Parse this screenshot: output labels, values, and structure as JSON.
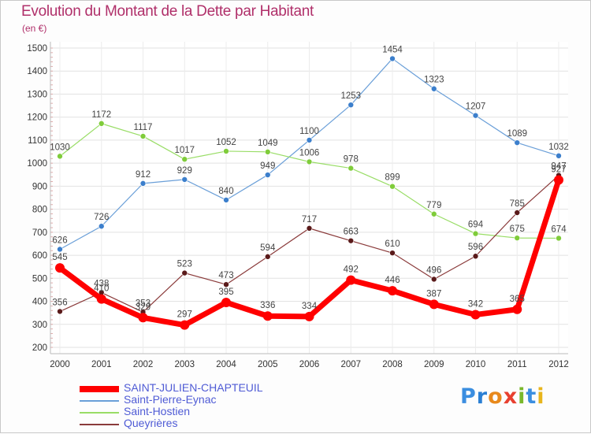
{
  "header": {
    "title": "Evolution du Montant de la Dette par Habitant",
    "unit": "(en €)"
  },
  "logo": {
    "text": "Proxiti",
    "letters": [
      "P",
      "r",
      "o",
      "x",
      "i",
      "t",
      "i"
    ],
    "colors": [
      "#3b8ee0",
      "#2a7fd4",
      "#e8891c",
      "#e84030",
      "#7ab82c",
      "#3b8ee0",
      "#e8b51c"
    ]
  },
  "colors": {
    "SAINT-JULIEN-CHAPTEUIL": "#ff0000",
    "Saint-Pierre-Eynac": "#6a9fd8",
    "Saint-Hostien": "#99dd66",
    "Queyrières": "#7a2a2a"
  },
  "chart_data": {
    "type": "line",
    "title": "Evolution du Montant de la Dette par Habitant",
    "ylabel": "(en €)",
    "xlabel": "",
    "x": [
      "2000",
      "2001",
      "2002",
      "2003",
      "2004",
      "2005",
      "2006",
      "2007",
      "2008",
      "2009",
      "2010",
      "2011",
      "2012"
    ],
    "ylim": [
      200,
      1500
    ],
    "yticks": [
      200,
      300,
      400,
      500,
      600,
      700,
      800,
      900,
      1000,
      1100,
      1200,
      1300,
      1400,
      1500
    ],
    "grid": true,
    "legend": "bottom-left",
    "series": [
      {
        "name": "SAINT-JULIEN-CHAPTEUIL",
        "values": [
          545,
          410,
          329,
          297,
          395,
          336,
          334,
          492,
          446,
          387,
          342,
          365,
          927
        ]
      },
      {
        "name": "Saint-Pierre-Eynac",
        "values": [
          626,
          726,
          912,
          929,
          840,
          949,
          1100,
          1253,
          1454,
          1323,
          1207,
          1089,
          1032
        ]
      },
      {
        "name": "Saint-Hostien",
        "values": [
          1030,
          1172,
          1117,
          1017,
          1052,
          1049,
          1006,
          978,
          899,
          779,
          694,
          675,
          674
        ]
      },
      {
        "name": "Queyrières",
        "values": [
          356,
          438,
          353,
          523,
          473,
          594,
          717,
          663,
          610,
          496,
          596,
          785,
          947
        ]
      }
    ]
  }
}
